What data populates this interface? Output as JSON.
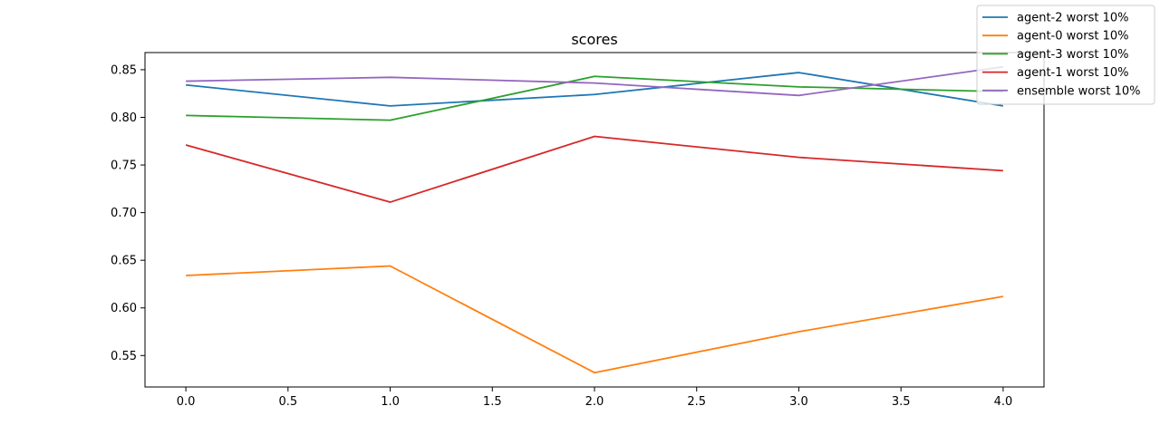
{
  "chart_data": {
    "type": "line",
    "title": "scores",
    "xlabel": "",
    "ylabel": "",
    "x": [
      0,
      1,
      2,
      3,
      4
    ],
    "xlim": [
      -0.2,
      4.2
    ],
    "ylim": [
      0.517,
      0.868
    ],
    "xticks": [
      "0.0",
      "0.5",
      "1.0",
      "1.5",
      "2.0",
      "2.5",
      "3.0",
      "3.5",
      "4.0"
    ],
    "yticks": [
      "0.55",
      "0.60",
      "0.65",
      "0.70",
      "0.75",
      "0.80",
      "0.85"
    ],
    "grid": false,
    "legend_position": "top-right",
    "series": [
      {
        "name": "agent-2 worst 10%",
        "color": "#1f77b4",
        "values": [
          0.834,
          0.812,
          0.824,
          0.847,
          0.812
        ]
      },
      {
        "name": "agent-0 worst 10%",
        "color": "#ff7f0e",
        "values": [
          0.634,
          0.644,
          0.532,
          0.575,
          0.612
        ]
      },
      {
        "name": "agent-3 worst 10%",
        "color": "#2ca02c",
        "values": [
          0.802,
          0.797,
          0.843,
          0.832,
          0.827
        ]
      },
      {
        "name": "agent-1 worst 10%",
        "color": "#d62728",
        "values": [
          0.771,
          0.711,
          0.78,
          0.758,
          0.744
        ]
      },
      {
        "name": "ensemble worst 10%",
        "color": "#9467bd",
        "values": [
          0.838,
          0.842,
          0.836,
          0.823,
          0.853
        ]
      }
    ]
  }
}
